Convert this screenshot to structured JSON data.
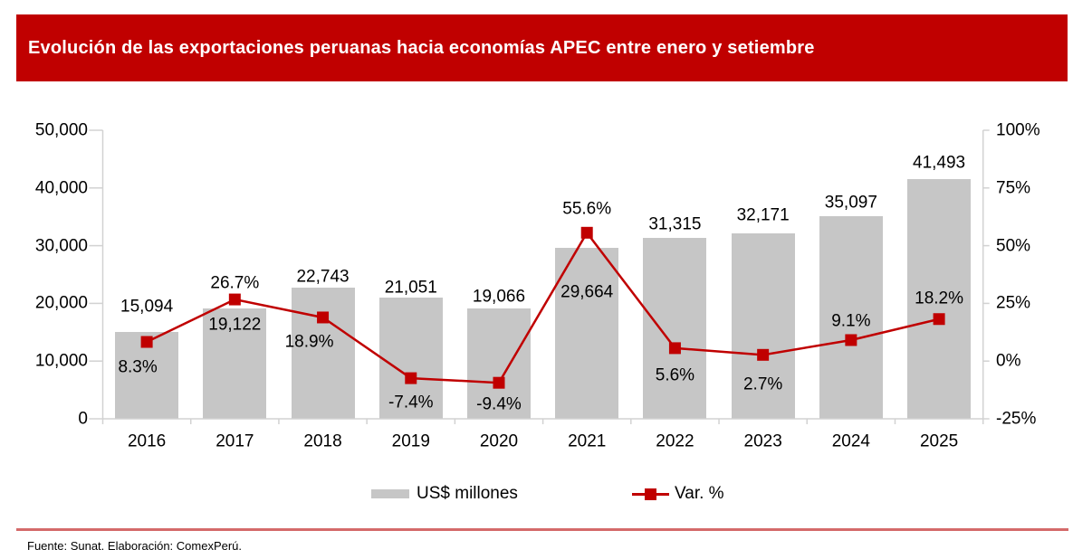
{
  "title": "Evolución de las exportaciones peruanas hacia economías APEC entre enero y setiembre",
  "legend": {
    "items": [
      {
        "label": "US$ millones",
        "swatch": "gray-bar"
      },
      {
        "label": "Var. %",
        "swatch": "red-line-square-marker"
      }
    ]
  },
  "footer": {
    "source": "Fuente: Sunat. Elaboración: ComexPerú."
  },
  "colors": {
    "banner_red": "#C00000",
    "bar_gray": "#C6C6C6",
    "line_red": "#C00000",
    "axis_gray": "#D2D2D2",
    "separator_red": "#D46A6A",
    "text": "#000000",
    "title_text": "#FFFFFF"
  },
  "chart_data": {
    "type": "bar",
    "subtype": "combo-bar-line-dual-axis",
    "title": "Evolución de las exportaciones peruanas hacia economías APEC entre enero y setiembre",
    "categories": [
      "2016",
      "2017",
      "2018",
      "2019",
      "2020",
      "2021",
      "2022",
      "2023",
      "2024",
      "2025"
    ],
    "series": [
      {
        "name": "US$ millones",
        "type": "bar",
        "axis": "left",
        "values": [
          15094,
          19122,
          22743,
          21051,
          19066,
          29664,
          31315,
          32171,
          35097,
          41493
        ],
        "labels": [
          "15,094",
          "19,122",
          "22,743",
          "21,051",
          "19,066",
          "29,664",
          "31,315",
          "32,171",
          "35,097",
          "41,493"
        ]
      },
      {
        "name": "Var. %",
        "type": "line",
        "axis": "right",
        "values": [
          8.3,
          26.7,
          18.9,
          -7.4,
          -9.4,
          55.6,
          5.6,
          2.7,
          9.1,
          18.2
        ],
        "labels": [
          "8.3%",
          "26.7%",
          "18.9%",
          "-7.4%",
          "-9.4%",
          "55.6%",
          "5.6%",
          "2.7%",
          "9.1%",
          "18.2%"
        ]
      }
    ],
    "left_axis": {
      "min": 0,
      "max": 50000,
      "tick_labels": [
        "0",
        "10,000",
        "20,000",
        "30,000",
        "40,000",
        "50,000"
      ]
    },
    "right_axis": {
      "min": -25,
      "max": 100,
      "tick_labels": [
        "-25%",
        "0%",
        "25%",
        "50%",
        "75%",
        "100%"
      ]
    },
    "grid": false,
    "legend_position": "bottom"
  }
}
